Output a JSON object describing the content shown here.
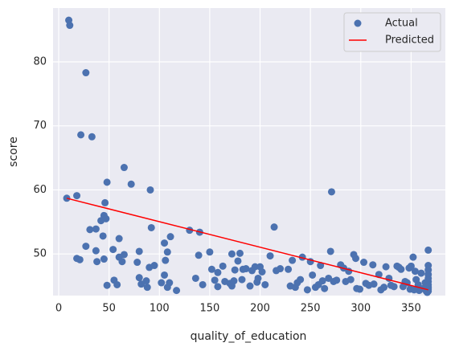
{
  "chart_data": {
    "type": "scatter",
    "x_label": "quality_of_education",
    "y_label": "score",
    "xlim": [
      -5.6,
      384
    ],
    "ylim": [
      43.5,
      88.4
    ],
    "xticks": [
      0,
      50,
      100,
      150,
      200,
      250,
      300,
      350
    ],
    "yticks": [
      50,
      60,
      70,
      80
    ],
    "grid": true,
    "background": "#eaeaf2",
    "legend": "upper right",
    "series": [
      {
        "name": "Actual",
        "type": "scatter",
        "color": "#4c72b0",
        "x": [
          10,
          11,
          27,
          22,
          33,
          65,
          72,
          48,
          91,
          271,
          8,
          18,
          46,
          45,
          42,
          47,
          31,
          37,
          44,
          60,
          27,
          54,
          37,
          65,
          60,
          80,
          38,
          63,
          18,
          21,
          45,
          78,
          90,
          95,
          92,
          105,
          111,
          108,
          130,
          140,
          106,
          214,
          48,
          55,
          58,
          80,
          82,
          87,
          88,
          102,
          105,
          110,
          108,
          117,
          136,
          139,
          150,
          152,
          143,
          155,
          158,
          158,
          163,
          165,
          170,
          172,
          174,
          172,
          175,
          178,
          180,
          182,
          183,
          186,
          190,
          192,
          195,
          197,
          198,
          200,
          202,
          205,
          210,
          216,
          220,
          228,
          230,
          232,
          235,
          237,
          240,
          242,
          247,
          250,
          252,
          255,
          258,
          260,
          262,
          264,
          268,
          270,
          273,
          276,
          280,
          283,
          285,
          288,
          290,
          293,
          295,
          296,
          299,
          303,
          305,
          308,
          312,
          313,
          318,
          320,
          323,
          325,
          328,
          330,
          333,
          336,
          338,
          340,
          342,
          344,
          346,
          348,
          350,
          352,
          354,
          355,
          357,
          358,
          360,
          362,
          365,
          367,
          367,
          367,
          367,
          367,
          367,
          367,
          367,
          367,
          367,
          366,
          364,
          353,
          349
        ],
        "values": [
          86.5,
          85.7,
          78.3,
          68.6,
          68.3,
          63.5,
          60.9,
          61.2,
          60,
          59.7,
          58.7,
          59.1,
          58,
          56,
          55.2,
          55.5,
          53.8,
          53.9,
          52.8,
          52.4,
          51.2,
          50.7,
          50.5,
          49.9,
          49.5,
          50.4,
          48.8,
          48.8,
          49.3,
          49.1,
          49.2,
          48.7,
          47.9,
          48.2,
          54.1,
          51.7,
          52.7,
          50.3,
          53.7,
          53.4,
          49,
          54.2,
          45.1,
          45.9,
          45.2,
          46.3,
          45.3,
          45.8,
          44.8,
          45.5,
          46.7,
          45.5,
          44.8,
          44.3,
          46.2,
          49.8,
          50.3,
          47.6,
          45.2,
          45.9,
          44.9,
          47.1,
          48.1,
          45.7,
          45.4,
          45,
          45.8,
          50,
          47.5,
          48.9,
          50.1,
          46,
          47.6,
          47.7,
          45,
          47.4,
          48,
          45.6,
          46.2,
          48,
          47.2,
          45.2,
          49.7,
          47.4,
          47.7,
          47.6,
          45,
          49,
          44.8,
          45.5,
          46,
          49.5,
          44.4,
          48.8,
          46.7,
          44.8,
          45.2,
          48.2,
          45.8,
          44.6,
          46.2,
          50.4,
          45.7,
          45.9,
          48.3,
          47.8,
          45.7,
          47.3,
          46,
          49.9,
          49.3,
          44.6,
          44.5,
          48.7,
          45.4,
          45.1,
          48.3,
          45.3,
          46.8,
          44.4,
          44.8,
          48,
          46.2,
          45.1,
          44.9,
          48.1,
          47.9,
          47.6,
          44.9,
          45.7,
          45.5,
          47.8,
          48.1,
          49.5,
          47.3,
          46,
          45.2,
          44.3,
          47,
          44.6,
          44.2,
          50.6,
          48.2,
          47.5,
          46.8,
          46.2,
          45.7,
          45.2,
          44.8,
          44.5,
          44.2,
          44,
          45.5,
          44.4,
          44.5
        ]
      },
      {
        "name": "Predicted",
        "type": "line",
        "color": "#ff0000",
        "x": [
          8,
          367
        ],
        "values": [
          58.7,
          44.4
        ]
      }
    ]
  }
}
